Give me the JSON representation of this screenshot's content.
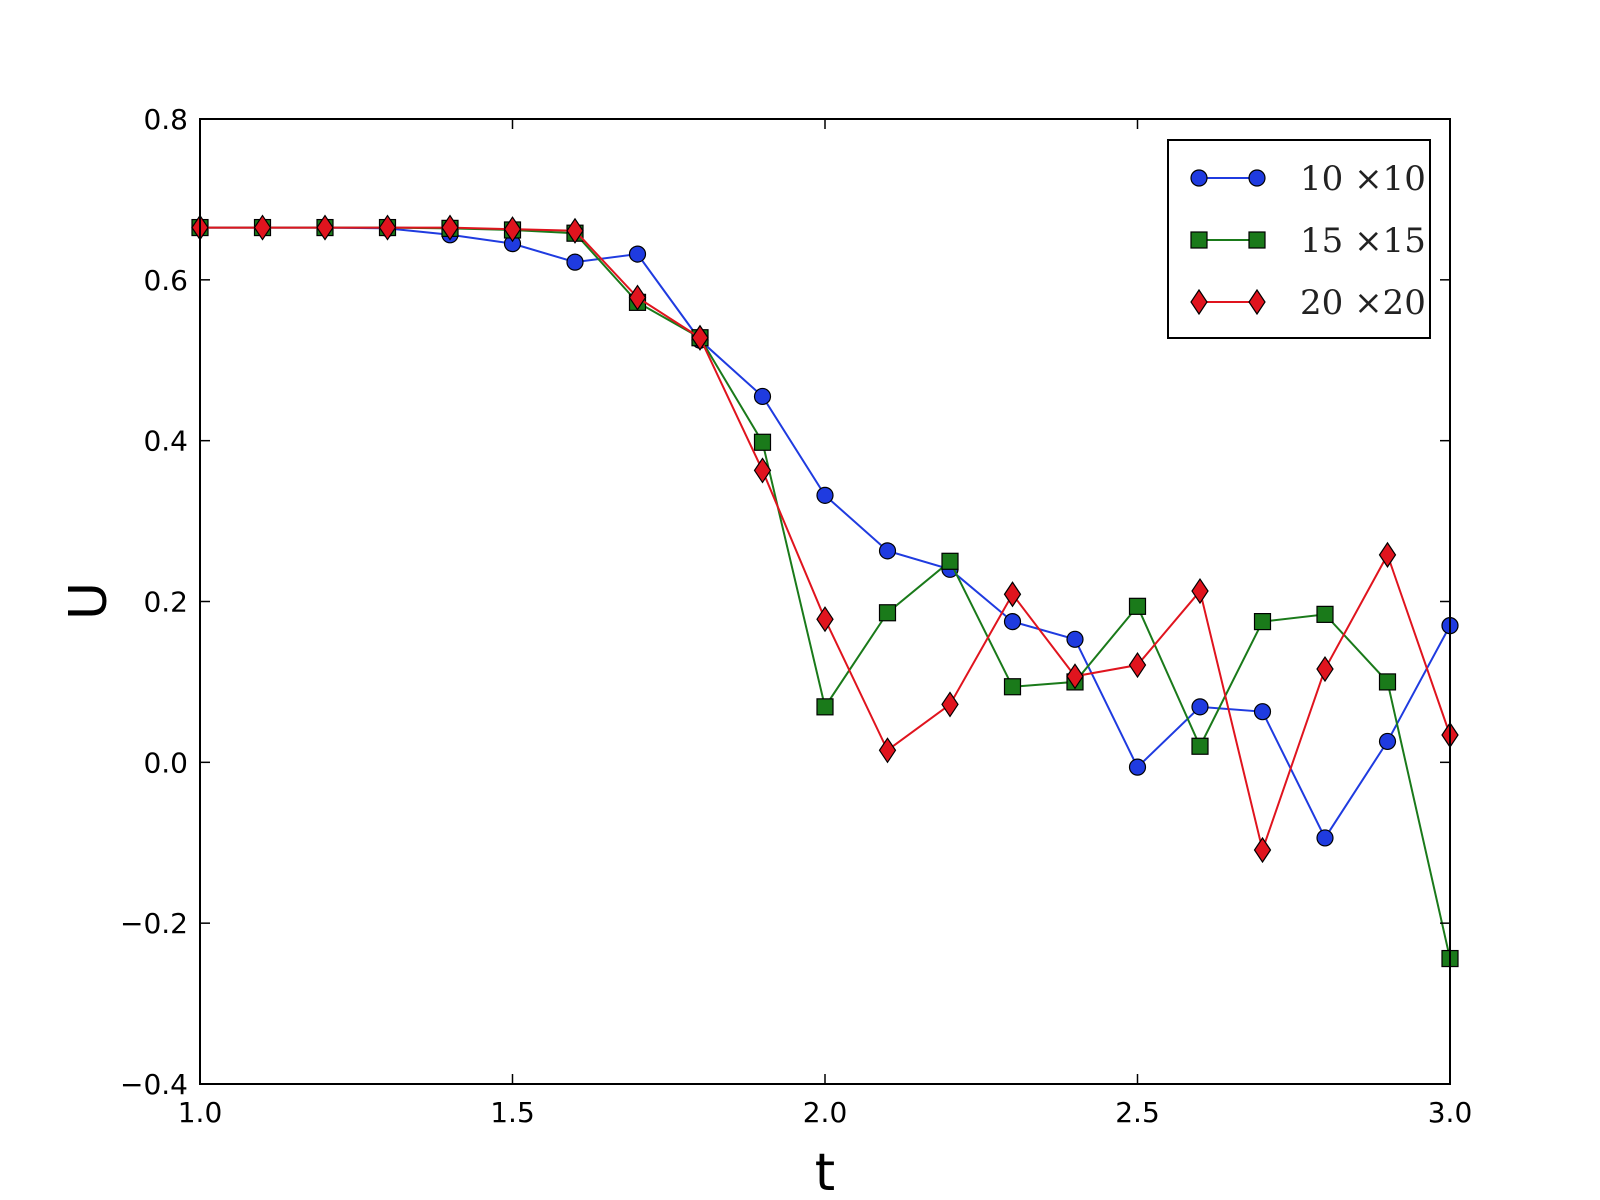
{
  "chart_data": {
    "type": "line",
    "xlabel": "t",
    "ylabel": "U",
    "xlim": [
      1.0,
      3.0
    ],
    "ylim": [
      -0.4,
      0.8
    ],
    "xticks": [
      "1.0",
      "1.5",
      "2.0",
      "2.5",
      "3.0"
    ],
    "yticks": [
      "0.8",
      "0.6",
      "0.4",
      "0.2",
      "0.0",
      "−0.2",
      "−0.4"
    ],
    "grid": false,
    "legend_position": "top-right",
    "x": [
      1.0,
      1.1,
      1.2,
      1.3,
      1.4,
      1.5,
      1.6,
      1.7,
      1.8,
      1.9,
      2.0,
      2.1,
      2.2,
      2.3,
      2.4,
      2.5,
      2.6,
      2.7,
      2.8,
      2.9,
      3.0
    ],
    "series": [
      {
        "name": "10 ×10",
        "color": "#1f3be0",
        "marker": "circle",
        "values": [
          0.665,
          0.665,
          0.665,
          0.664,
          0.656,
          0.645,
          0.622,
          0.632,
          0.525,
          0.455,
          0.332,
          0.263,
          0.24,
          0.175,
          0.153,
          -0.006,
          0.069,
          0.063,
          -0.094,
          0.026,
          0.17
        ]
      },
      {
        "name": "15 ×15",
        "color": "#1a7a1a",
        "marker": "square",
        "values": [
          0.665,
          0.665,
          0.665,
          0.665,
          0.664,
          0.662,
          0.658,
          0.572,
          0.528,
          0.398,
          0.069,
          0.186,
          0.25,
          0.094,
          0.1,
          0.194,
          0.02,
          0.175,
          0.184,
          0.1,
          -0.244
        ]
      },
      {
        "name": "20 ×20",
        "color": "#e0141e",
        "marker": "diamond",
        "values": [
          0.665,
          0.665,
          0.665,
          0.665,
          0.665,
          0.663,
          0.661,
          0.578,
          0.528,
          0.363,
          0.178,
          0.015,
          0.072,
          0.209,
          0.107,
          0.121,
          0.213,
          -0.109,
          0.116,
          0.258,
          0.034
        ]
      }
    ]
  }
}
